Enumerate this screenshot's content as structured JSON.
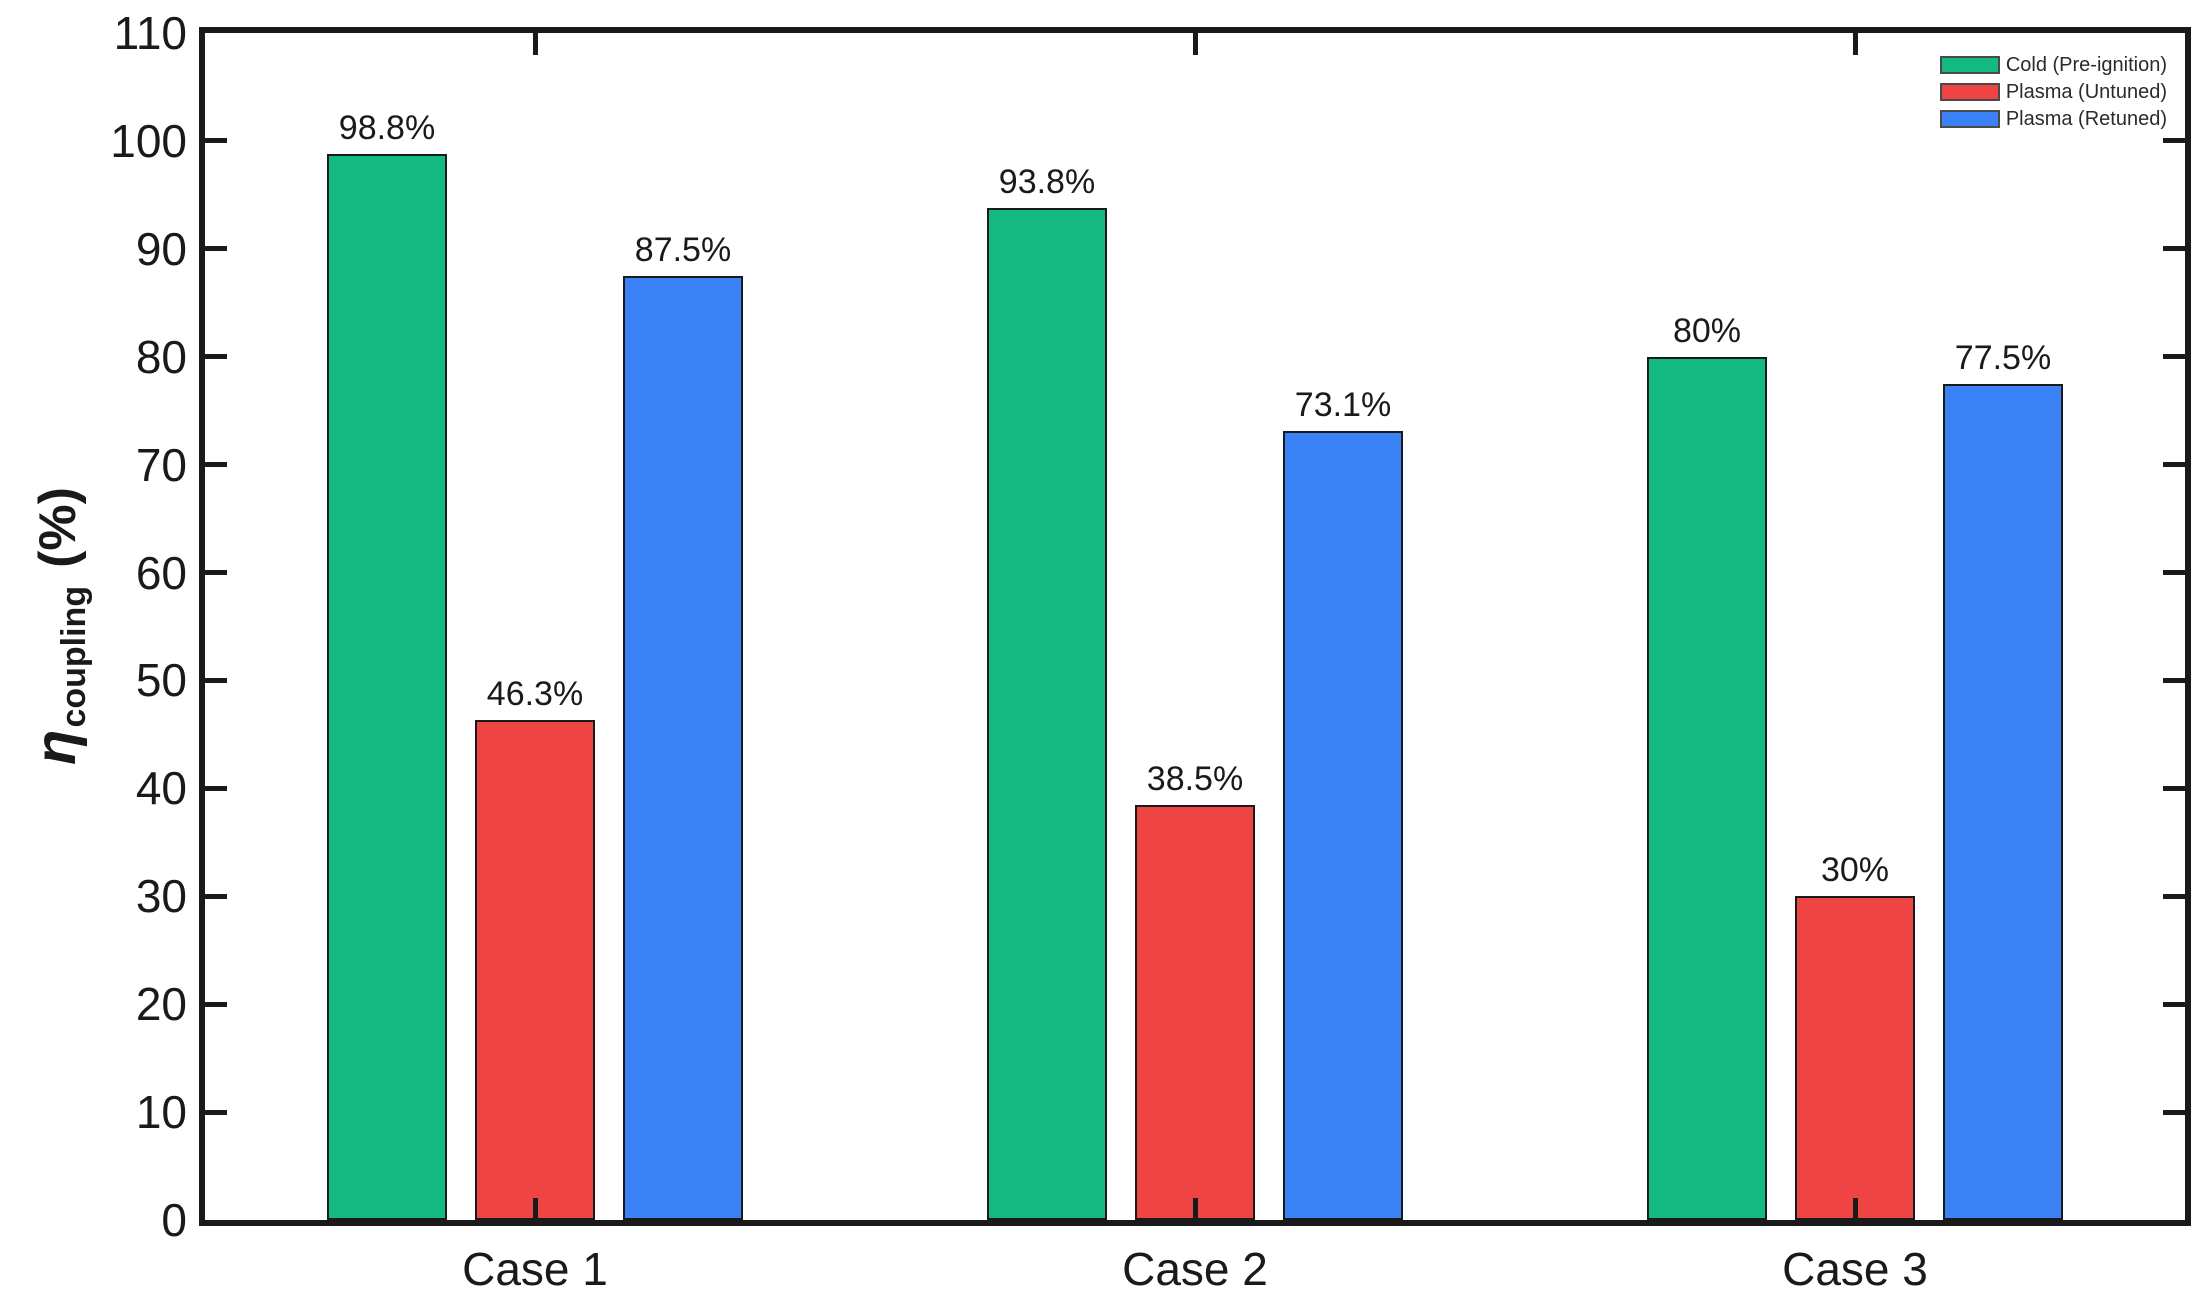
{
  "figure": {
    "background": "#ffffff",
    "axis_color": "#1a1a1a",
    "text_color": "#1a1a1a"
  },
  "chart_data": {
    "type": "bar",
    "title": "",
    "categories": [
      "Case 1",
      "Case 2",
      "Case 3"
    ],
    "series": [
      {
        "name": "Cold (Pre-ignition)",
        "color": "#13b981",
        "values": [
          98.8,
          93.8,
          80
        ],
        "labels": [
          "98.8%",
          "93.8%",
          "80%"
        ]
      },
      {
        "name": "Plasma (Untuned)",
        "color": "#ef4444",
        "values": [
          46.3,
          38.5,
          30
        ],
        "labels": [
          "46.3%",
          "38.5%",
          "30%"
        ]
      },
      {
        "name": "Plasma (Retuned)",
        "color": "#3b82f6",
        "values": [
          87.5,
          73.1,
          77.5
        ],
        "labels": [
          "87.5%",
          "73.1%",
          "77.5%"
        ]
      }
    ],
    "ylabel_parts": {
      "symbol": "η",
      "subscript": "coupling",
      "suffix": "(%)"
    },
    "ylabel_text": "η_coupling (%)",
    "xlabel": "",
    "ylim": [
      0,
      110
    ],
    "yticks": [
      0,
      10,
      20,
      30,
      40,
      50,
      60,
      70,
      80,
      90,
      100,
      110
    ],
    "grid": false,
    "legend_position": "top-right",
    "bar_edge_color": "#1a1a1a",
    "tick_direction": "in"
  }
}
